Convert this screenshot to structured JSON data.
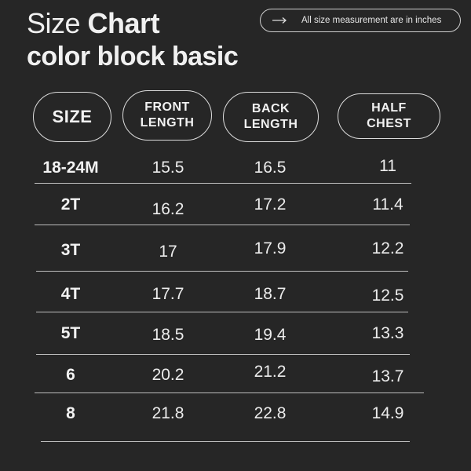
{
  "title": {
    "light": "Size",
    "bold": "Chart"
  },
  "subtitle": "color block basic",
  "note": {
    "icon": "arrow-right-icon",
    "text": "All size measurement are in inches"
  },
  "columns": [
    "SIZE",
    "FRONT\nLENGTH",
    "BACK\nLENGTH",
    "HALF\nCHEST"
  ],
  "rows": [
    {
      "size": "18-24M",
      "front": "15.5",
      "back": "16.5",
      "chest": "11"
    },
    {
      "size": "2T",
      "front": "16.2",
      "back": "17.2",
      "chest": "11.4"
    },
    {
      "size": "3T",
      "front": "17",
      "back": "17.9",
      "chest": "12.2"
    },
    {
      "size": "4T",
      "front": "17.7",
      "back": "18.7",
      "chest": "12.5"
    },
    {
      "size": "5T",
      "front": "18.5",
      "back": "19.4",
      "chest": "13.3"
    },
    {
      "size": "6",
      "front": "20.2",
      "back": "21.2",
      "chest": "13.7"
    },
    {
      "size": "8",
      "front": "21.8",
      "back": "22.8",
      "chest": "14.9"
    }
  ],
  "colors": {
    "background": "#262626",
    "text": "#ececec",
    "border": "#dcdcdc"
  }
}
